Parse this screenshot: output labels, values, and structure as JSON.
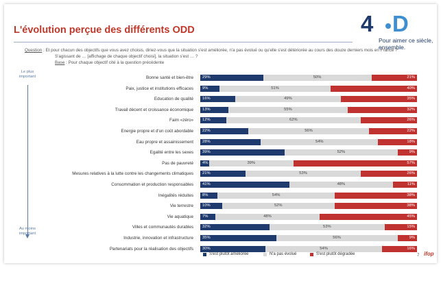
{
  "title": "L'évolution perçue des différents ODD",
  "logo": {
    "number": "4",
    "letter": "D",
    "tagline_1": "Pour aimer ce siècle,",
    "tagline_2": "ensemble."
  },
  "question": {
    "label": "Question",
    "text": " : Et pour chacun des objectifs que vous avez choisis, diriez-vous que la situation s'est améliorée, n'a pas évolué ou qu'elle s'est détériorée au cours des douze derniers mois en France ?",
    "text2": "S'agissant de … [affichage de chaque objectif choisi], la situation s'est … ?",
    "base_label": "Base",
    "base_text": " : Pour chaque objectif cité à la question précédente"
  },
  "axis_top": "Le plus important",
  "axis_bottom": "Au moins important",
  "legend": {
    "improved": "S'est plutôt améliorée",
    "same": "N'a pas évolué",
    "degraded": "S'est plutôt dégradée"
  },
  "colors": {
    "improved": "#1f3a6d",
    "same": "#d9d9d9",
    "degraded": "#c0322f",
    "title": "#c0392b"
  },
  "page_number": "7",
  "brand": "ifop",
  "chart_data": {
    "type": "bar",
    "orientation": "horizontal-stacked-100",
    "categories": [
      "Bonne santé et bien-être",
      "Paix, justice et institutions efficaces",
      "Education de qualité",
      "Travail décent et croissance économique",
      "Faim «zéro»",
      "Energie propre et d'un coût abordable",
      "Eau propre et assainissement",
      "Egalité entre les sexes",
      "Pas de pauvreté",
      "Mesures relatives à la lutte contre les changements climatiques",
      "Consommation et production responsables",
      "Inégalités réduites",
      "Vie terrestre",
      "Vie aquatique",
      "Villes et communautés durables",
      "Industrie, innovation et infrastructure",
      "Partenariats pour la réalisation des objectifs"
    ],
    "series": [
      {
        "name": "S'est plutôt améliorée",
        "values": [
          29,
          9,
          16,
          13,
          12,
          22,
          28,
          39,
          4,
          21,
          41,
          8,
          10,
          7,
          32,
          35,
          30
        ]
      },
      {
        "name": "N'a pas évolué",
        "values": [
          50,
          51,
          49,
          55,
          62,
          56,
          54,
          52,
          39,
          53,
          48,
          54,
          52,
          48,
          53,
          56,
          54
        ]
      },
      {
        "name": "S'est plutôt dégradée",
        "values": [
          21,
          40,
          35,
          32,
          26,
          22,
          18,
          9,
          57,
          26,
          11,
          38,
          38,
          45,
          15,
          9,
          16
        ]
      }
    ],
    "value_suffix": "%"
  }
}
